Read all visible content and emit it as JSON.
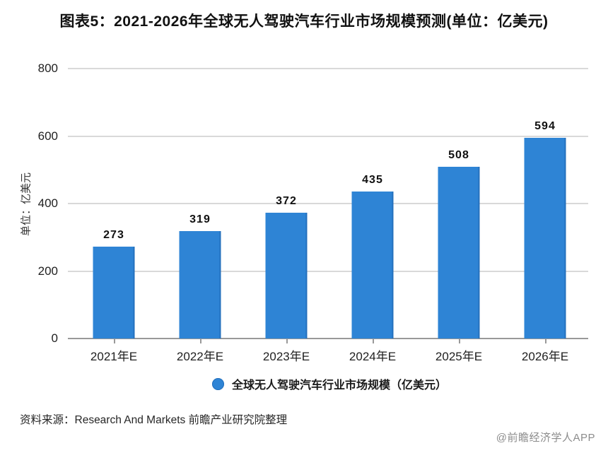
{
  "title": "图表5：2021-2026年全球无人驾驶汽车行业市场规模预测(单位：亿美元)",
  "chart_data": {
    "type": "bar",
    "title": "图表5：2021-2026年全球无人驾驶汽车行业市场规模预测(单位：亿美元)",
    "categories": [
      "2021年E",
      "2022年E",
      "2023年E",
      "2024年E",
      "2025年E",
      "2026年E"
    ],
    "values": [
      273,
      319,
      372,
      435,
      508,
      594
    ],
    "series_name": "全球无人驾驶汽车行业市场规模（亿美元）",
    "xlabel": "",
    "ylabel": "单位：亿美元",
    "yticks": [
      0,
      200,
      400,
      600,
      800
    ],
    "ylim": [
      0,
      800
    ],
    "grid": "horizontal",
    "legend_position": "bottom"
  },
  "legend": {
    "label": "全球无人驾驶汽车行业市场规模（亿美元）"
  },
  "footer": {
    "source": "资料来源：Research And Markets 前瞻产业研究院整理",
    "watermark": "@前瞻经济学人APP"
  },
  "colors": {
    "bar": "#2e84d5",
    "bar_edge": "#2470bd",
    "grid": "#d9d9d9",
    "axis": "#999999",
    "text": "#1a1a1a",
    "watermark": "#8c8c8c"
  }
}
